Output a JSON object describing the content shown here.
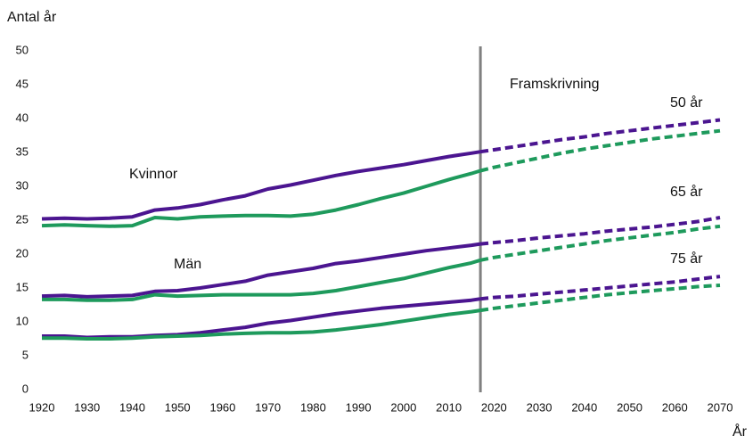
{
  "chart_data": {
    "type": "line",
    "y_label": "Antal år",
    "x_label": "År",
    "annotations": [
      "Kvinnor",
      "Män",
      "Framskrivning",
      "50 år",
      "65 år",
      "75 år"
    ],
    "projection_start": 2017,
    "x": [
      1920,
      1925,
      1930,
      1935,
      1940,
      1945,
      1950,
      1955,
      1960,
      1965,
      1970,
      1975,
      1980,
      1985,
      1990,
      1995,
      2000,
      2005,
      2010,
      2015,
      2017,
      2020,
      2025,
      2030,
      2035,
      2040,
      2045,
      2050,
      2055,
      2060,
      2065,
      2070
    ],
    "xlim": [
      1920,
      2070
    ],
    "xticks": [
      1920,
      1930,
      1940,
      1950,
      1960,
      1970,
      1980,
      1990,
      2000,
      2010,
      2020,
      2030,
      2040,
      2050,
      2060,
      2070
    ],
    "ylim": [
      0,
      50
    ],
    "yticks": [
      0,
      5,
      10,
      15,
      20,
      25,
      30,
      35,
      40,
      45,
      50
    ],
    "series": [
      {
        "color": "#4b1590",
        "dashed": false,
        "values": [
          25.2,
          25.3,
          25.2,
          25.3,
          25.5,
          26.5,
          26.8,
          27.3,
          28.0,
          28.6,
          29.6,
          30.2,
          30.9,
          31.6,
          32.2,
          32.7,
          33.2,
          33.8,
          34.4,
          34.9,
          35.1,
          null,
          null,
          null,
          null,
          null,
          null,
          null,
          null,
          null,
          null,
          null
        ]
      },
      {
        "color": "#4b1590",
        "dashed": true,
        "values": [
          null,
          null,
          null,
          null,
          null,
          null,
          null,
          null,
          null,
          null,
          null,
          null,
          null,
          null,
          null,
          null,
          null,
          null,
          null,
          null,
          35.1,
          35.4,
          35.9,
          36.4,
          36.9,
          37.3,
          37.8,
          38.2,
          38.6,
          39.0,
          39.4,
          39.8
        ]
      },
      {
        "color": "#1e9a5c",
        "dashed": false,
        "values": [
          24.2,
          24.3,
          24.2,
          24.1,
          24.2,
          25.4,
          25.2,
          25.5,
          25.6,
          25.7,
          25.7,
          25.6,
          25.9,
          26.5,
          27.3,
          28.2,
          29.0,
          30.0,
          31.0,
          31.9,
          32.3,
          null,
          null,
          null,
          null,
          null,
          null,
          null,
          null,
          null,
          null,
          null
        ]
      },
      {
        "color": "#1e9a5c",
        "dashed": true,
        "values": [
          null,
          null,
          null,
          null,
          null,
          null,
          null,
          null,
          null,
          null,
          null,
          null,
          null,
          null,
          null,
          null,
          null,
          null,
          null,
          null,
          32.3,
          32.8,
          33.5,
          34.2,
          34.9,
          35.5,
          36.0,
          36.5,
          37.0,
          37.4,
          37.8,
          38.2
        ]
      },
      {
        "color": "#4b1590",
        "dashed": false,
        "values": [
          13.8,
          13.9,
          13.7,
          13.8,
          13.9,
          14.5,
          14.6,
          15.0,
          15.5,
          16.0,
          16.9,
          17.4,
          17.9,
          18.6,
          19.0,
          19.5,
          20.0,
          20.5,
          20.9,
          21.3,
          21.5,
          null,
          null,
          null,
          null,
          null,
          null,
          null,
          null,
          null,
          null,
          null
        ]
      },
      {
        "color": "#4b1590",
        "dashed": true,
        "values": [
          null,
          null,
          null,
          null,
          null,
          null,
          null,
          null,
          null,
          null,
          null,
          null,
          null,
          null,
          null,
          null,
          null,
          null,
          null,
          null,
          21.5,
          21.7,
          22.0,
          22.4,
          22.7,
          23.0,
          23.4,
          23.7,
          24.0,
          24.4,
          24.8,
          25.4
        ]
      },
      {
        "color": "#1e9a5c",
        "dashed": false,
        "values": [
          13.3,
          13.3,
          13.2,
          13.2,
          13.3,
          14.0,
          13.8,
          13.9,
          14.0,
          14.0,
          14.0,
          14.0,
          14.2,
          14.6,
          15.2,
          15.8,
          16.4,
          17.2,
          18.0,
          18.7,
          19.1,
          null,
          null,
          null,
          null,
          null,
          null,
          null,
          null,
          null,
          null,
          null
        ]
      },
      {
        "color": "#1e9a5c",
        "dashed": true,
        "values": [
          null,
          null,
          null,
          null,
          null,
          null,
          null,
          null,
          null,
          null,
          null,
          null,
          null,
          null,
          null,
          null,
          null,
          null,
          null,
          null,
          19.1,
          19.5,
          20.0,
          20.5,
          21.0,
          21.5,
          22.0,
          22.4,
          22.8,
          23.2,
          23.7,
          24.1
        ]
      },
      {
        "color": "#4b1590",
        "dashed": false,
        "values": [
          7.9,
          7.9,
          7.7,
          7.8,
          7.8,
          8.0,
          8.1,
          8.4,
          8.8,
          9.2,
          9.8,
          10.2,
          10.7,
          11.2,
          11.6,
          12.0,
          12.3,
          12.6,
          12.9,
          13.2,
          13.4,
          null,
          null,
          null,
          null,
          null,
          null,
          null,
          null,
          null,
          null,
          null
        ]
      },
      {
        "color": "#4b1590",
        "dashed": true,
        "values": [
          null,
          null,
          null,
          null,
          null,
          null,
          null,
          null,
          null,
          null,
          null,
          null,
          null,
          null,
          null,
          null,
          null,
          null,
          null,
          null,
          13.4,
          13.6,
          13.8,
          14.1,
          14.4,
          14.7,
          15.0,
          15.3,
          15.6,
          15.9,
          16.3,
          16.7
        ]
      },
      {
        "color": "#1e9a5c",
        "dashed": false,
        "values": [
          7.6,
          7.6,
          7.5,
          7.5,
          7.6,
          7.8,
          7.9,
          8.0,
          8.2,
          8.3,
          8.4,
          8.4,
          8.5,
          8.8,
          9.2,
          9.6,
          10.1,
          10.6,
          11.1,
          11.5,
          11.7,
          null,
          null,
          null,
          null,
          null,
          null,
          null,
          null,
          null,
          null,
          null
        ]
      },
      {
        "color": "#1e9a5c",
        "dashed": true,
        "values": [
          null,
          null,
          null,
          null,
          null,
          null,
          null,
          null,
          null,
          null,
          null,
          null,
          null,
          null,
          null,
          null,
          null,
          null,
          null,
          null,
          11.7,
          12.0,
          12.4,
          12.8,
          13.2,
          13.6,
          14.0,
          14.3,
          14.6,
          14.9,
          15.2,
          15.4
        ]
      }
    ]
  }
}
